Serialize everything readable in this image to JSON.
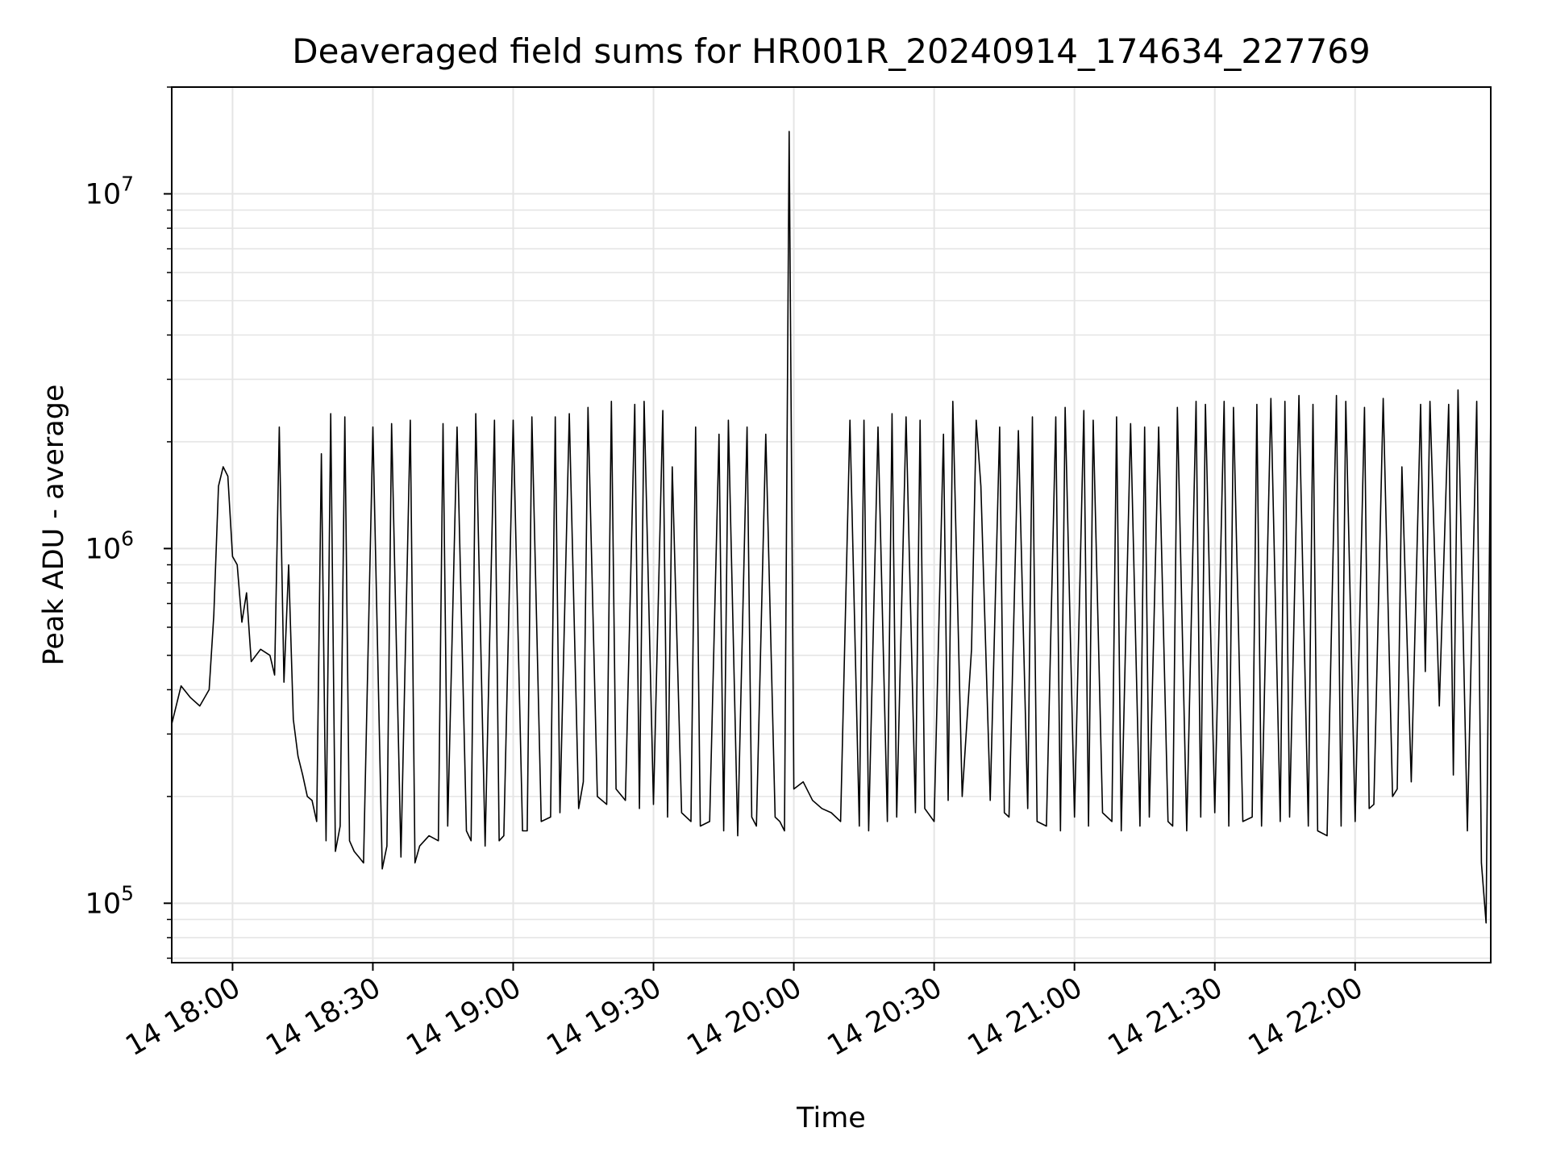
{
  "chart_data": {
    "type": "line",
    "title": "Deaveraged field sums for HR001R_20240914_174634_227769",
    "xlabel": "Time",
    "ylabel": "Peak ADU - average",
    "yscale": "log",
    "ylim": [
      68000,
      20000000
    ],
    "xlim": [
      "2024-09-14 17:47",
      "2024-09-14 22:29"
    ],
    "grid": true,
    "line_color": "#000000",
    "x_ticks": [
      {
        "t": "2024-09-14 18:00",
        "label": "14 18:00"
      },
      {
        "t": "2024-09-14 18:30",
        "label": "14 18:30"
      },
      {
        "t": "2024-09-14 19:00",
        "label": "14 19:00"
      },
      {
        "t": "2024-09-14 19:30",
        "label": "14 19:30"
      },
      {
        "t": "2024-09-14 20:00",
        "label": "14 20:00"
      },
      {
        "t": "2024-09-14 20:30",
        "label": "14 20:30"
      },
      {
        "t": "2024-09-14 21:00",
        "label": "14 21:00"
      },
      {
        "t": "2024-09-14 21:30",
        "label": "14 21:30"
      },
      {
        "t": "2024-09-14 22:00",
        "label": "14 22:00"
      }
    ],
    "y_ticks": [
      {
        "v": 100000,
        "base": "10",
        "exp": "5"
      },
      {
        "v": 1000000,
        "base": "10",
        "exp": "6"
      },
      {
        "v": 10000000,
        "base": "10",
        "exp": "7"
      }
    ],
    "series": [
      {
        "x": [
          "2024-09-14 17:47",
          "2024-09-14 17:49",
          "2024-09-14 17:51",
          "2024-09-14 17:53",
          "2024-09-14 17:55",
          "2024-09-14 17:56",
          "2024-09-14 17:57",
          "2024-09-14 17:58",
          "2024-09-14 17:59",
          "2024-09-14 18:00",
          "2024-09-14 18:01",
          "2024-09-14 18:02",
          "2024-09-14 18:03",
          "2024-09-14 18:04",
          "2024-09-14 18:06",
          "2024-09-14 18:08",
          "2024-09-14 18:09",
          "2024-09-14 18:10",
          "2024-09-14 18:11",
          "2024-09-14 18:12",
          "2024-09-14 18:13",
          "2024-09-14 18:14",
          "2024-09-14 18:15",
          "2024-09-14 18:16",
          "2024-09-14 18:17",
          "2024-09-14 18:18",
          "2024-09-14 18:19",
          "2024-09-14 18:20",
          "2024-09-14 18:21",
          "2024-09-14 18:22",
          "2024-09-14 18:23",
          "2024-09-14 18:24",
          "2024-09-14 18:25",
          "2024-09-14 18:26",
          "2024-09-14 18:27",
          "2024-09-14 18:28",
          "2024-09-14 18:30",
          "2024-09-14 18:32",
          "2024-09-14 18:33",
          "2024-09-14 18:34",
          "2024-09-14 18:36",
          "2024-09-14 18:38",
          "2024-09-14 18:39",
          "2024-09-14 18:40",
          "2024-09-14 18:42",
          "2024-09-14 18:44",
          "2024-09-14 18:45",
          "2024-09-14 18:46",
          "2024-09-14 18:48",
          "2024-09-14 18:50",
          "2024-09-14 18:51",
          "2024-09-14 18:52",
          "2024-09-14 18:54",
          "2024-09-14 18:56",
          "2024-09-14 18:57",
          "2024-09-14 18:58",
          "2024-09-14 19:00",
          "2024-09-14 19:02",
          "2024-09-14 19:03",
          "2024-09-14 19:04",
          "2024-09-14 19:06",
          "2024-09-14 19:08",
          "2024-09-14 19:09",
          "2024-09-14 19:10",
          "2024-09-14 19:12",
          "2024-09-14 19:14",
          "2024-09-14 19:15",
          "2024-09-14 19:16",
          "2024-09-14 19:18",
          "2024-09-14 19:20",
          "2024-09-14 19:21",
          "2024-09-14 19:22",
          "2024-09-14 19:24",
          "2024-09-14 19:26",
          "2024-09-14 19:27",
          "2024-09-14 19:28",
          "2024-09-14 19:30",
          "2024-09-14 19:32",
          "2024-09-14 19:33",
          "2024-09-14 19:34",
          "2024-09-14 19:36",
          "2024-09-14 19:38",
          "2024-09-14 19:39",
          "2024-09-14 19:40",
          "2024-09-14 19:42",
          "2024-09-14 19:44",
          "2024-09-14 19:45",
          "2024-09-14 19:46",
          "2024-09-14 19:48",
          "2024-09-14 19:50",
          "2024-09-14 19:51",
          "2024-09-14 19:52",
          "2024-09-14 19:54",
          "2024-09-14 19:56",
          "2024-09-14 19:57",
          "2024-09-14 19:58",
          "2024-09-14 19:59",
          "2024-09-14 20:00",
          "2024-09-14 20:02",
          "2024-09-14 20:04",
          "2024-09-14 20:06",
          "2024-09-14 20:08",
          "2024-09-14 20:10",
          "2024-09-14 20:12",
          "2024-09-14 20:14",
          "2024-09-14 20:15",
          "2024-09-14 20:16",
          "2024-09-14 20:18",
          "2024-09-14 20:20",
          "2024-09-14 20:21",
          "2024-09-14 20:22",
          "2024-09-14 20:24",
          "2024-09-14 20:26",
          "2024-09-14 20:27",
          "2024-09-14 20:28",
          "2024-09-14 20:30",
          "2024-09-14 20:32",
          "2024-09-14 20:33",
          "2024-09-14 20:34",
          "2024-09-14 20:36",
          "2024-09-14 20:38",
          "2024-09-14 20:39",
          "2024-09-14 20:40",
          "2024-09-14 20:42",
          "2024-09-14 20:44",
          "2024-09-14 20:45",
          "2024-09-14 20:46",
          "2024-09-14 20:48",
          "2024-09-14 20:50",
          "2024-09-14 20:51",
          "2024-09-14 20:52",
          "2024-09-14 20:54",
          "2024-09-14 20:56",
          "2024-09-14 20:57",
          "2024-09-14 20:58",
          "2024-09-14 21:00",
          "2024-09-14 21:02",
          "2024-09-14 21:03",
          "2024-09-14 21:04",
          "2024-09-14 21:06",
          "2024-09-14 21:08",
          "2024-09-14 21:09",
          "2024-09-14 21:10",
          "2024-09-14 21:12",
          "2024-09-14 21:14",
          "2024-09-14 21:15",
          "2024-09-14 21:16",
          "2024-09-14 21:18",
          "2024-09-14 21:20",
          "2024-09-14 21:21",
          "2024-09-14 21:22",
          "2024-09-14 21:24",
          "2024-09-14 21:26",
          "2024-09-14 21:27",
          "2024-09-14 21:28",
          "2024-09-14 21:30",
          "2024-09-14 21:32",
          "2024-09-14 21:33",
          "2024-09-14 21:34",
          "2024-09-14 21:36",
          "2024-09-14 21:38",
          "2024-09-14 21:39",
          "2024-09-14 21:40",
          "2024-09-14 21:42",
          "2024-09-14 21:44",
          "2024-09-14 21:45",
          "2024-09-14 21:46",
          "2024-09-14 21:48",
          "2024-09-14 21:50",
          "2024-09-14 21:51",
          "2024-09-14 21:52",
          "2024-09-14 21:54",
          "2024-09-14 21:56",
          "2024-09-14 21:57",
          "2024-09-14 21:58",
          "2024-09-14 22:00",
          "2024-09-14 22:02",
          "2024-09-14 22:03",
          "2024-09-14 22:04",
          "2024-09-14 22:06",
          "2024-09-14 22:08",
          "2024-09-14 22:09",
          "2024-09-14 22:10",
          "2024-09-14 22:12",
          "2024-09-14 22:14",
          "2024-09-14 22:15",
          "2024-09-14 22:16",
          "2024-09-14 22:18",
          "2024-09-14 22:20",
          "2024-09-14 22:21",
          "2024-09-14 22:22",
          "2024-09-14 22:24",
          "2024-09-14 22:26",
          "2024-09-14 22:27",
          "2024-09-14 22:28",
          "2024-09-14 22:29"
        ],
        "y": [
          320000,
          410000,
          380000,
          360000,
          400000,
          650000,
          1500000,
          1700000,
          1600000,
          950000,
          900000,
          620000,
          750000,
          480000,
          520000,
          500000,
          440000,
          2200000,
          420000,
          900000,
          330000,
          260000,
          230000,
          200000,
          195000,
          170000,
          1850000,
          150000,
          2400000,
          140000,
          165000,
          2350000,
          150000,
          140000,
          135000,
          130000,
          2200000,
          125000,
          145000,
          2250000,
          135000,
          2300000,
          130000,
          145000,
          155000,
          150000,
          2250000,
          165000,
          2200000,
          160000,
          150000,
          2400000,
          145000,
          2300000,
          150000,
          155000,
          2300000,
          160000,
          160000,
          2350000,
          170000,
          175000,
          2350000,
          180000,
          2400000,
          185000,
          220000,
          2500000,
          200000,
          190000,
          2600000,
          210000,
          195000,
          2550000,
          185000,
          2600000,
          190000,
          2450000,
          175000,
          1700000,
          180000,
          170000,
          2200000,
          165000,
          170000,
          2100000,
          160000,
          2300000,
          155000,
          2200000,
          175000,
          165000,
          2100000,
          175000,
          170000,
          160000,
          15000000,
          210000,
          220000,
          195000,
          185000,
          180000,
          170000,
          2300000,
          165000,
          2300000,
          160000,
          2200000,
          170000,
          2400000,
          175000,
          2350000,
          180000,
          2300000,
          185000,
          170000,
          2100000,
          195000,
          2600000,
          200000,
          520000,
          2300000,
          1500000,
          195000,
          2200000,
          180000,
          175000,
          2150000,
          185000,
          2350000,
          170000,
          165000,
          2350000,
          160000,
          2500000,
          175000,
          2450000,
          165000,
          2300000,
          180000,
          170000,
          2350000,
          160000,
          2250000,
          165000,
          2200000,
          175000,
          2200000,
          170000,
          165000,
          2500000,
          160000,
          2600000,
          175000,
          2550000,
          180000,
          2600000,
          165000,
          2500000,
          170000,
          175000,
          2550000,
          165000,
          2650000,
          170000,
          2600000,
          175000,
          2700000,
          165000,
          2550000,
          160000,
          155000,
          2700000,
          165000,
          2600000,
          170000,
          2500000,
          185000,
          190000,
          2650000,
          200000,
          210000,
          1700000,
          220000,
          2550000,
          450000,
          2600000,
          360000,
          2550000,
          230000,
          2800000,
          160000,
          2600000,
          130000,
          88000,
          2500000
        ]
      }
    ]
  }
}
